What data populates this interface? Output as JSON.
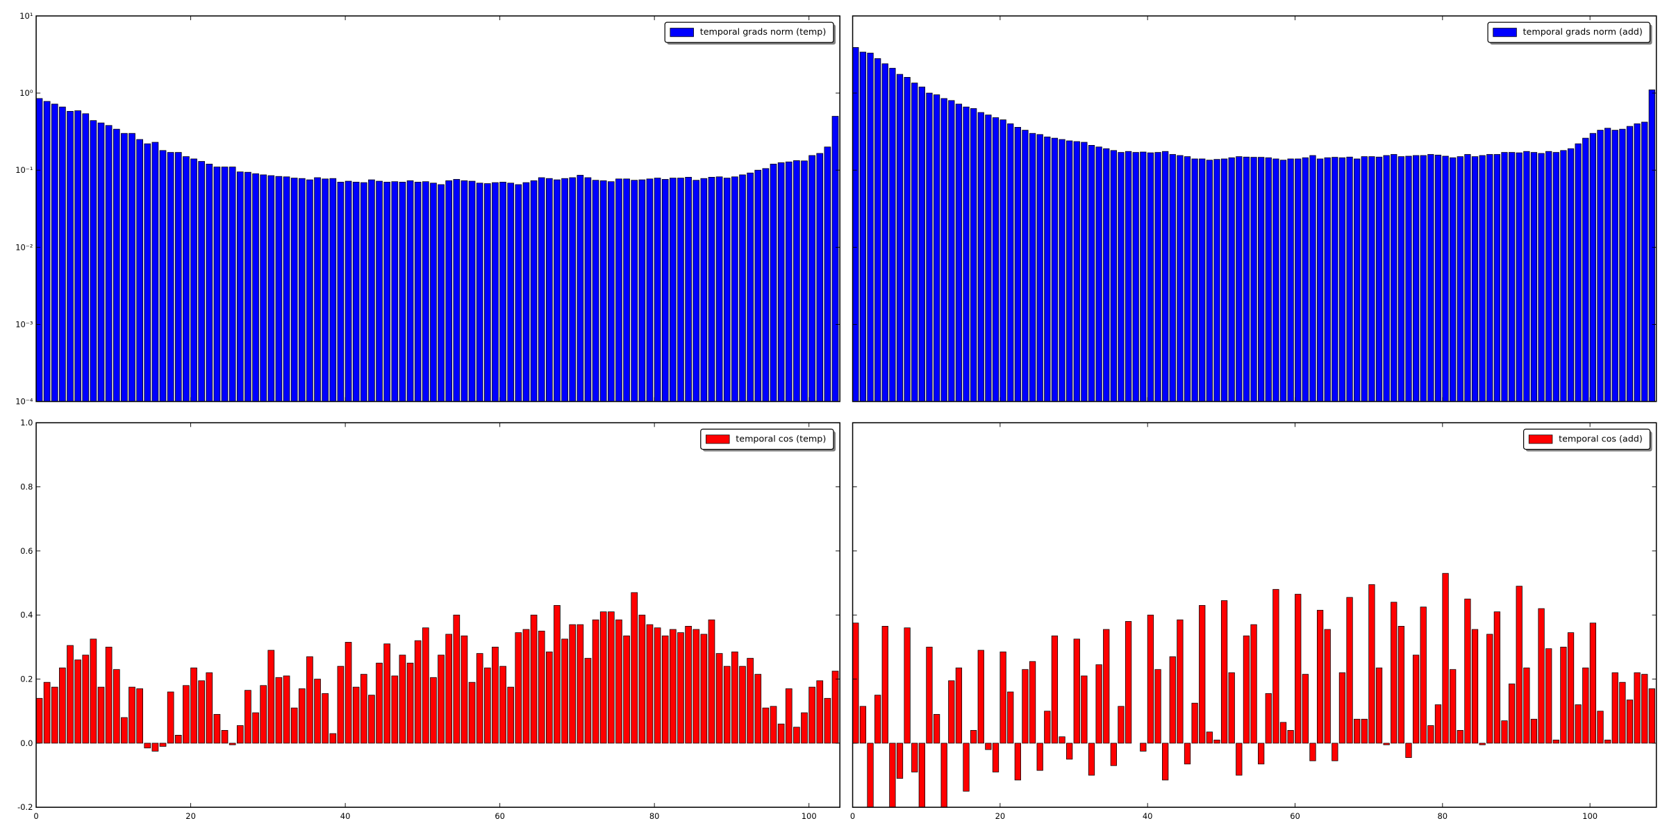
{
  "chart_data": [
    {
      "type": "bar",
      "yscale": "log",
      "legend": "upper right",
      "xtick_labels": false,
      "ytick_labels": true,
      "xlim": [
        0,
        104
      ],
      "xticks": [
        0,
        20,
        40,
        60,
        80,
        100
      ],
      "ylim": [
        0.0001,
        10
      ],
      "yticks": [
        {
          "value": 0.0001,
          "label": "10⁻⁴"
        },
        {
          "value": 0.001,
          "label": "10⁻³"
        },
        {
          "value": 0.01,
          "label": "10⁻²"
        },
        {
          "value": 0.1,
          "label": "10⁻¹"
        },
        {
          "value": 1,
          "label": "10⁰"
        },
        {
          "value": 10,
          "label": "10¹"
        }
      ],
      "series": [
        {
          "name": "temporal grads norm (temp)",
          "color": "#0000ff",
          "values": [
            0.85,
            0.78,
            0.72,
            0.66,
            0.58,
            0.59,
            0.54,
            0.44,
            0.41,
            0.38,
            0.34,
            0.3,
            0.3,
            0.25,
            0.22,
            0.23,
            0.18,
            0.17,
            0.17,
            0.15,
            0.14,
            0.13,
            0.12,
            0.11,
            0.11,
            0.11,
            0.095,
            0.094,
            0.09,
            0.087,
            0.085,
            0.083,
            0.082,
            0.079,
            0.078,
            0.075,
            0.08,
            0.077,
            0.078,
            0.07,
            0.072,
            0.07,
            0.069,
            0.075,
            0.072,
            0.07,
            0.071,
            0.07,
            0.073,
            0.07,
            0.071,
            0.068,
            0.065,
            0.073,
            0.076,
            0.073,
            0.072,
            0.068,
            0.067,
            0.069,
            0.07,
            0.068,
            0.065,
            0.069,
            0.073,
            0.08,
            0.078,
            0.075,
            0.078,
            0.08,
            0.086,
            0.08,
            0.074,
            0.073,
            0.071,
            0.077,
            0.077,
            0.074,
            0.075,
            0.077,
            0.079,
            0.076,
            0.079,
            0.079,
            0.081,
            0.074,
            0.078,
            0.081,
            0.082,
            0.079,
            0.082,
            0.087,
            0.092,
            0.1,
            0.105,
            0.12,
            0.125,
            0.128,
            0.133,
            0.132,
            0.155,
            0.165,
            0.2,
            0.5
          ]
        }
      ]
    },
    {
      "type": "bar",
      "yscale": "log",
      "legend": "upper right",
      "xtick_labels": false,
      "ytick_labels": false,
      "xlim": [
        0,
        109
      ],
      "xticks": [
        0,
        20,
        40,
        60,
        80,
        100
      ],
      "ylim": [
        0.0001,
        10
      ],
      "yticks": [
        0.0001,
        0.001,
        0.01,
        0.1,
        1,
        10
      ],
      "series": [
        {
          "name": "temporal grads norm (add)",
          "color": "#0000ff",
          "values": [
            3.9,
            3.4,
            3.3,
            2.8,
            2.4,
            2.1,
            1.75,
            1.6,
            1.35,
            1.2,
            1.0,
            0.95,
            0.85,
            0.8,
            0.72,
            0.66,
            0.63,
            0.56,
            0.52,
            0.48,
            0.45,
            0.4,
            0.36,
            0.33,
            0.3,
            0.29,
            0.27,
            0.26,
            0.25,
            0.24,
            0.235,
            0.23,
            0.21,
            0.2,
            0.19,
            0.18,
            0.17,
            0.175,
            0.17,
            0.172,
            0.168,
            0.17,
            0.175,
            0.16,
            0.155,
            0.15,
            0.14,
            0.14,
            0.135,
            0.138,
            0.14,
            0.145,
            0.15,
            0.148,
            0.147,
            0.147,
            0.145,
            0.14,
            0.135,
            0.14,
            0.14,
            0.145,
            0.155,
            0.14,
            0.145,
            0.147,
            0.145,
            0.148,
            0.14,
            0.15,
            0.15,
            0.148,
            0.155,
            0.16,
            0.15,
            0.152,
            0.155,
            0.155,
            0.16,
            0.157,
            0.152,
            0.145,
            0.15,
            0.16,
            0.15,
            0.155,
            0.16,
            0.16,
            0.17,
            0.17,
            0.168,
            0.175,
            0.17,
            0.165,
            0.175,
            0.17,
            0.18,
            0.19,
            0.22,
            0.26,
            0.3,
            0.33,
            0.35,
            0.33,
            0.34,
            0.37,
            0.4,
            0.42,
            1.1
          ]
        }
      ]
    },
    {
      "type": "bar",
      "yscale": "linear",
      "legend": "upper right",
      "xtick_labels": true,
      "ytick_labels": true,
      "xlim": [
        0,
        104
      ],
      "xticks": [
        0,
        20,
        40,
        60,
        80,
        100
      ],
      "ylim": [
        -0.2,
        1
      ],
      "yticks": [
        {
          "value": -0.2,
          "label": "-0.2"
        },
        {
          "value": 0,
          "label": "0.0"
        },
        {
          "value": 0.2,
          "label": "0.2"
        },
        {
          "value": 0.4,
          "label": "0.4"
        },
        {
          "value": 0.6,
          "label": "0.6"
        },
        {
          "value": 0.8,
          "label": "0.8"
        },
        {
          "value": 1,
          "label": "1.0"
        }
      ],
      "series": [
        {
          "name": "temporal cos (temp)",
          "color": "#ff0000",
          "values": [
            0.14,
            0.19,
            0.175,
            0.235,
            0.305,
            0.26,
            0.275,
            0.325,
            0.175,
            0.3,
            0.23,
            0.08,
            0.175,
            0.17,
            -0.015,
            -0.025,
            -0.01,
            0.16,
            0.025,
            0.18,
            0.235,
            0.195,
            0.22,
            0.09,
            0.04,
            -0.005,
            0.055,
            0.165,
            0.095,
            0.18,
            0.29,
            0.205,
            0.21,
            0.11,
            0.17,
            0.27,
            0.2,
            0.155,
            0.03,
            0.24,
            0.315,
            0.175,
            0.215,
            0.15,
            0.25,
            0.31,
            0.21,
            0.275,
            0.25,
            0.32,
            0.36,
            0.205,
            0.275,
            0.34,
            0.4,
            0.335,
            0.19,
            0.28,
            0.235,
            0.3,
            0.24,
            0.175,
            0.345,
            0.355,
            0.4,
            0.35,
            0.285,
            0.43,
            0.325,
            0.37,
            0.37,
            0.265,
            0.385,
            0.41,
            0.41,
            0.385,
            0.335,
            0.47,
            0.4,
            0.37,
            0.36,
            0.335,
            0.355,
            0.345,
            0.365,
            0.355,
            0.34,
            0.385,
            0.28,
            0.24,
            0.285,
            0.24,
            0.265,
            0.215,
            0.11,
            0.115,
            0.06,
            0.17,
            0.05,
            0.095,
            0.175,
            0.195,
            0.14,
            0.225
          ]
        }
      ]
    },
    {
      "type": "bar",
      "yscale": "linear",
      "legend": "upper right",
      "xtick_labels": true,
      "ytick_labels": false,
      "xlim": [
        0,
        109
      ],
      "xticks": [
        0,
        20,
        40,
        60,
        80,
        100
      ],
      "ylim": [
        -0.2,
        1
      ],
      "yticks": [
        -0.2,
        0,
        0.2,
        0.4,
        0.6,
        0.8,
        1
      ],
      "series": [
        {
          "name": "temporal cos (add)",
          "color": "#ff0000",
          "values": [
            0.375,
            0.115,
            -0.22,
            0.15,
            0.365,
            -0.25,
            -0.11,
            0.36,
            -0.09,
            -0.25,
            0.3,
            0.09,
            -0.25,
            0.195,
            0.235,
            -0.15,
            0.04,
            0.29,
            -0.02,
            -0.09,
            0.285,
            0.16,
            -0.115,
            0.23,
            0.255,
            -0.085,
            0.1,
            0.335,
            0.02,
            -0.05,
            0.325,
            0.21,
            -0.1,
            0.245,
            0.355,
            -0.07,
            0.115,
            0.38,
            0.0,
            -0.025,
            0.4,
            0.23,
            -0.115,
            0.27,
            0.385,
            -0.065,
            0.125,
            0.43,
            0.035,
            0.01,
            0.445,
            0.22,
            -0.1,
            0.335,
            0.37,
            -0.065,
            0.155,
            0.48,
            0.065,
            0.04,
            0.465,
            0.215,
            -0.055,
            0.415,
            0.355,
            -0.055,
            0.22,
            0.455,
            0.075,
            0.075,
            0.495,
            0.235,
            -0.005,
            0.44,
            0.365,
            -0.045,
            0.275,
            0.425,
            0.055,
            0.12,
            0.53,
            0.23,
            0.04,
            0.45,
            0.355,
            -0.005,
            0.34,
            0.41,
            0.07,
            0.185,
            0.49,
            0.235,
            0.075,
            0.42,
            0.295,
            0.01,
            0.3,
            0.345,
            0.12,
            0.235,
            0.375,
            0.1,
            0.01,
            0.22,
            0.19,
            0.135,
            0.22,
            0.215,
            0.17
          ]
        }
      ]
    }
  ]
}
